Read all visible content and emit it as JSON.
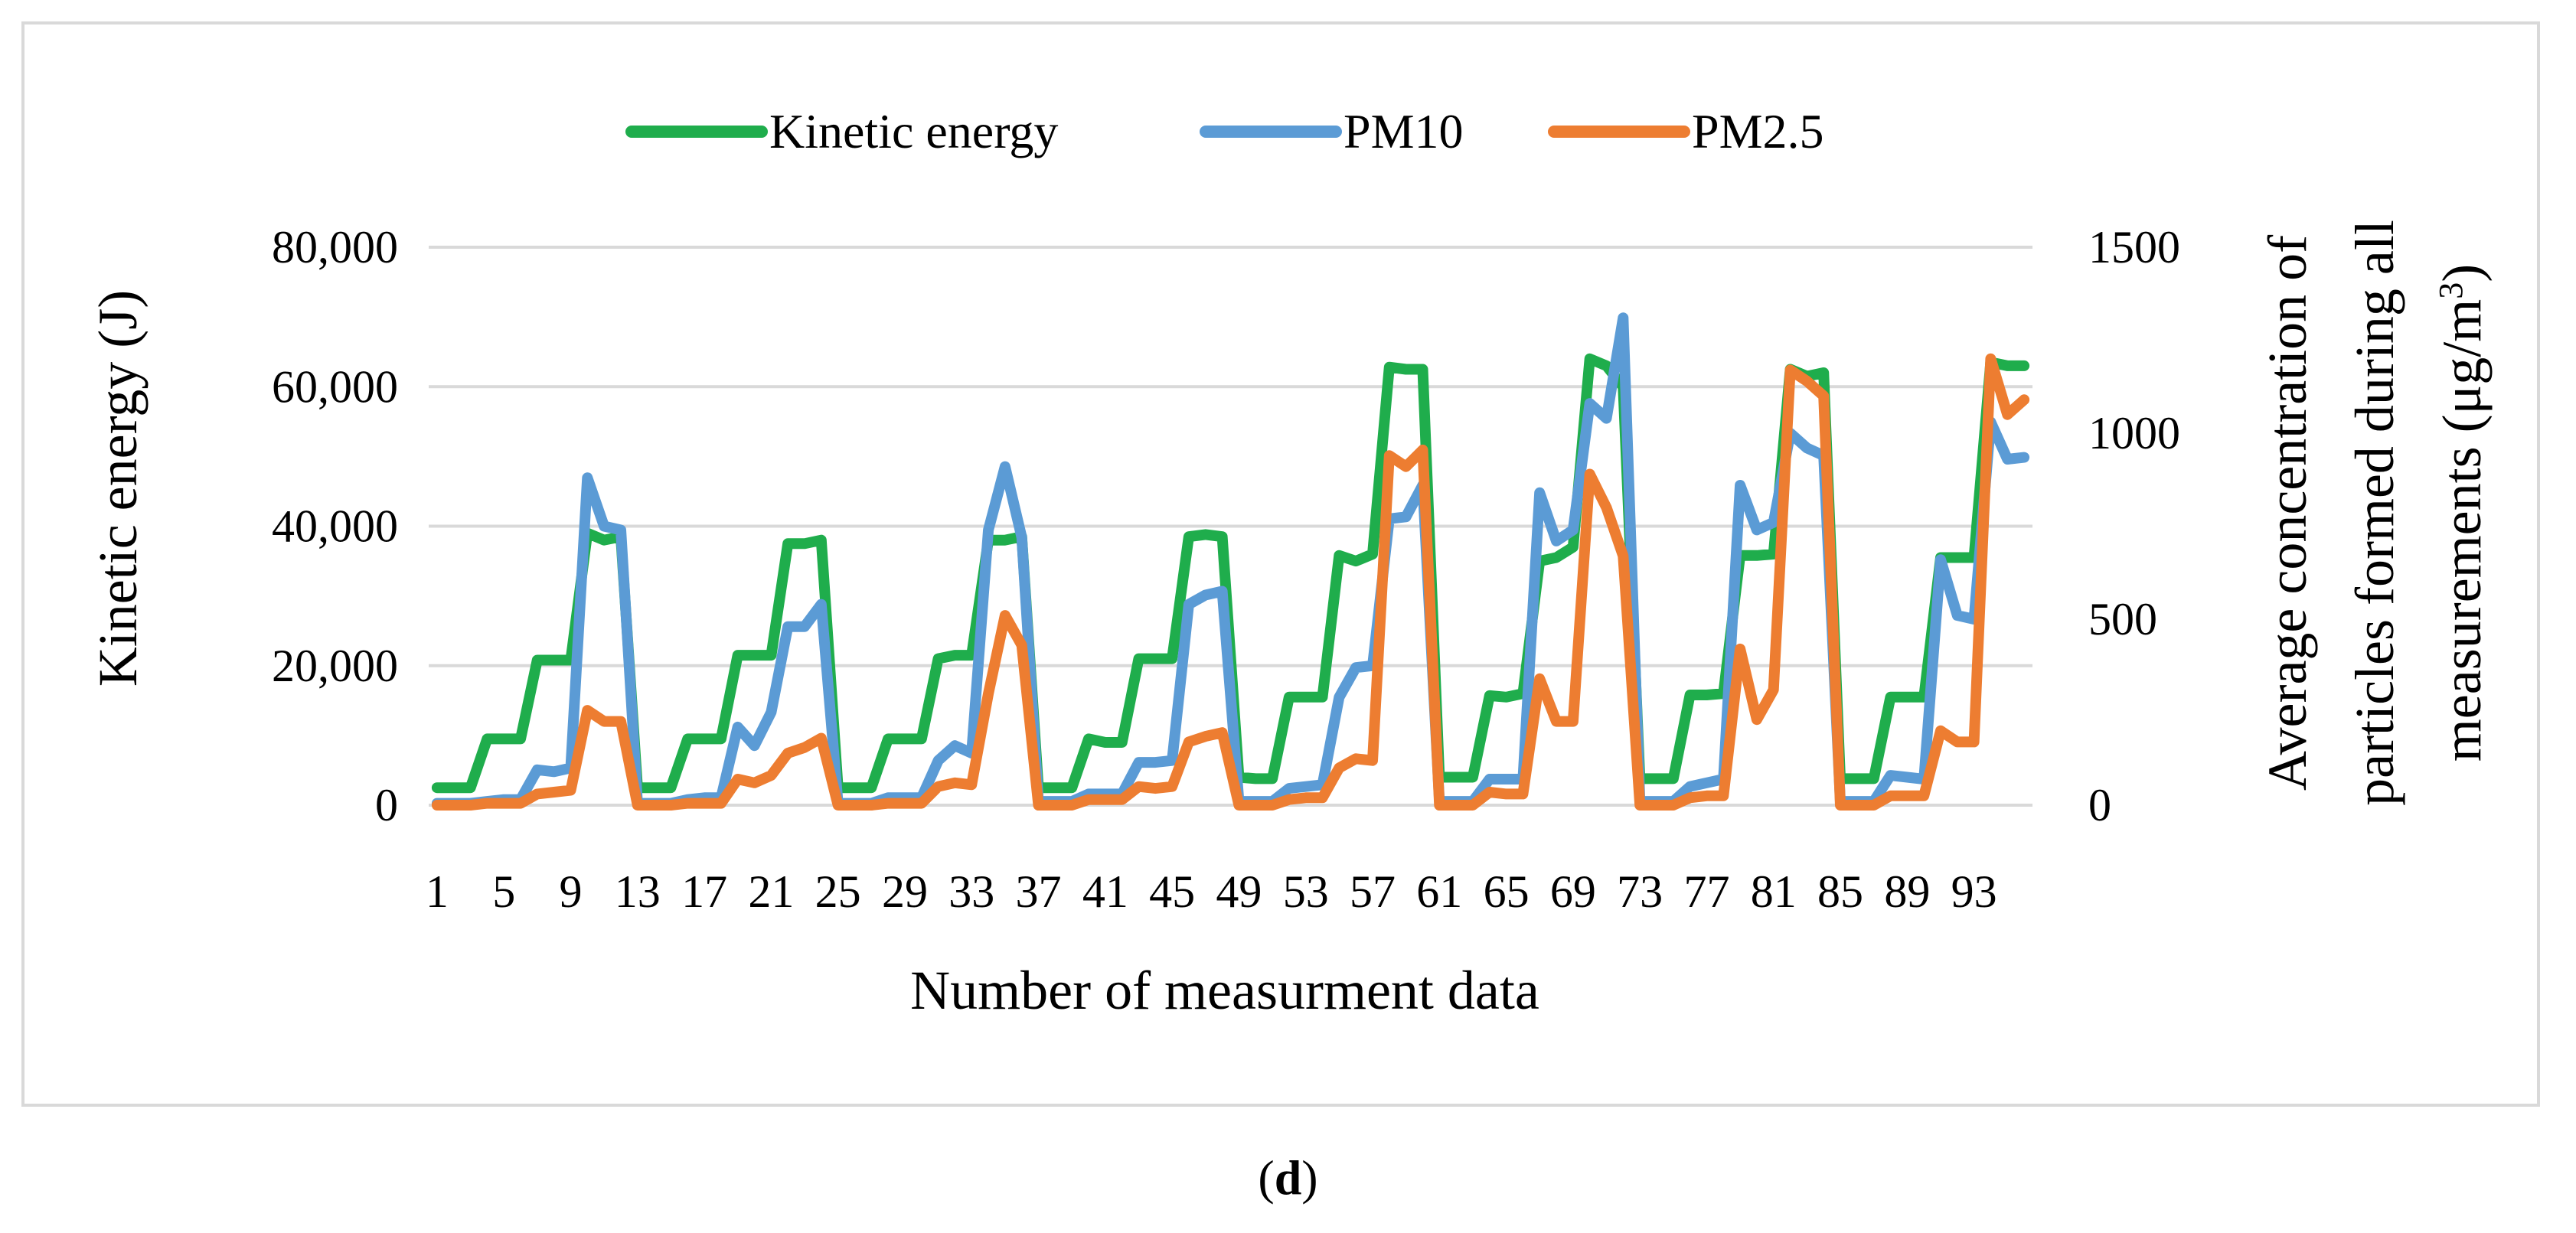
{
  "chart_data": {
    "type": "line",
    "title": "",
    "xlabel": "Number of measurment data",
    "ylabel": "Kinetic energy (J)",
    "y2label_lines": [
      "Average concentration of",
      "particles formed during all",
      "measurements (μg/m",
      "3",
      ")"
    ],
    "ylim": [
      0,
      80000
    ],
    "y2lim": [
      0,
      1500
    ],
    "yticks": [
      0,
      20000,
      40000,
      60000,
      80000
    ],
    "ytick_labels": [
      "0",
      "20,000",
      "40,000",
      "60,000",
      "80,000"
    ],
    "y2ticks": [
      0,
      500,
      1000,
      1500
    ],
    "y2tick_labels": [
      "0",
      "500",
      "1000",
      "1500"
    ],
    "xticks": [
      1,
      5,
      9,
      13,
      17,
      21,
      25,
      29,
      33,
      37,
      41,
      45,
      49,
      53,
      57,
      61,
      65,
      69,
      73,
      77,
      81,
      85,
      89,
      93
    ],
    "xtick_labels": [
      "1",
      "5",
      "9",
      "13",
      "17",
      "21",
      "25",
      "29",
      "33",
      "37",
      "41",
      "45",
      "49",
      "53",
      "57",
      "61",
      "65",
      "69",
      "73",
      "77",
      "81",
      "85",
      "89",
      "93"
    ],
    "n_points": 96,
    "grid": "horizontal",
    "legend_position": "top-center",
    "series": [
      {
        "name": "Kinetic energy",
        "axis": "left",
        "color": "#1fad4c",
        "values": [
          2500,
          2500,
          2500,
          9500,
          9500,
          9500,
          20800,
          20800,
          20800,
          39000,
          38000,
          38500,
          2500,
          2500,
          2500,
          9500,
          9500,
          9500,
          21500,
          21500,
          21500,
          37500,
          37500,
          38000,
          2500,
          2500,
          2500,
          9500,
          9500,
          9500,
          21000,
          21500,
          21500,
          38000,
          38000,
          38500,
          2500,
          2500,
          2500,
          9500,
          9000,
          9000,
          21000,
          21000,
          21000,
          38500,
          38800,
          38500,
          4000,
          3800,
          3800,
          15500,
          15500,
          15500,
          35800,
          35000,
          36000,
          62800,
          62500,
          62500,
          4000,
          4000,
          4000,
          15700,
          15500,
          16000,
          35000,
          35500,
          37000,
          64000,
          63000,
          60000,
          3800,
          3800,
          3800,
          15800,
          15800,
          16000,
          35800,
          35800,
          36000,
          62500,
          61500,
          62000,
          3800,
          3800,
          3800,
          15500,
          15500,
          15500,
          35500,
          35500,
          35500,
          63500,
          63000,
          63000
        ]
      },
      {
        "name": "PM10",
        "axis": "right",
        "color": "#5b9bd5",
        "values": [
          5,
          5,
          5,
          10,
          15,
          15,
          95,
          90,
          100,
          880,
          750,
          740,
          5,
          5,
          5,
          15,
          20,
          20,
          210,
          160,
          250,
          480,
          480,
          540,
          5,
          5,
          5,
          20,
          20,
          20,
          120,
          160,
          140,
          740,
          910,
          720,
          10,
          10,
          10,
          30,
          30,
          30,
          115,
          115,
          120,
          540,
          565,
          575,
          10,
          10,
          10,
          45,
          50,
          55,
          290,
          370,
          375,
          770,
          775,
          860,
          10,
          10,
          10,
          70,
          70,
          70,
          840,
          710,
          740,
          1080,
          1040,
          1310,
          10,
          10,
          10,
          50,
          60,
          70,
          860,
          740,
          760,
          1000,
          960,
          940,
          10,
          10,
          10,
          80,
          75,
          70,
          660,
          510,
          500,
          1030,
          930,
          935
        ]
      },
      {
        "name": "PM2.5",
        "axis": "right",
        "color": "#ed7d31",
        "values": [
          0,
          0,
          0,
          5,
          5,
          5,
          30,
          35,
          40,
          255,
          225,
          225,
          0,
          0,
          0,
          5,
          5,
          5,
          70,
          60,
          80,
          140,
          155,
          180,
          0,
          0,
          0,
          5,
          5,
          5,
          50,
          60,
          55,
          300,
          510,
          430,
          0,
          0,
          0,
          15,
          15,
          15,
          50,
          45,
          50,
          170,
          185,
          195,
          0,
          0,
          0,
          15,
          20,
          20,
          100,
          125,
          120,
          940,
          910,
          955,
          0,
          0,
          0,
          35,
          30,
          30,
          340,
          225,
          225,
          890,
          800,
          670,
          0,
          0,
          0,
          20,
          25,
          25,
          420,
          230,
          310,
          1170,
          1140,
          1100,
          0,
          0,
          0,
          25,
          25,
          25,
          200,
          170,
          170,
          1200,
          1050,
          1090
        ]
      }
    ]
  },
  "caption": {
    "open": "(",
    "label": "d",
    "close": ")"
  }
}
